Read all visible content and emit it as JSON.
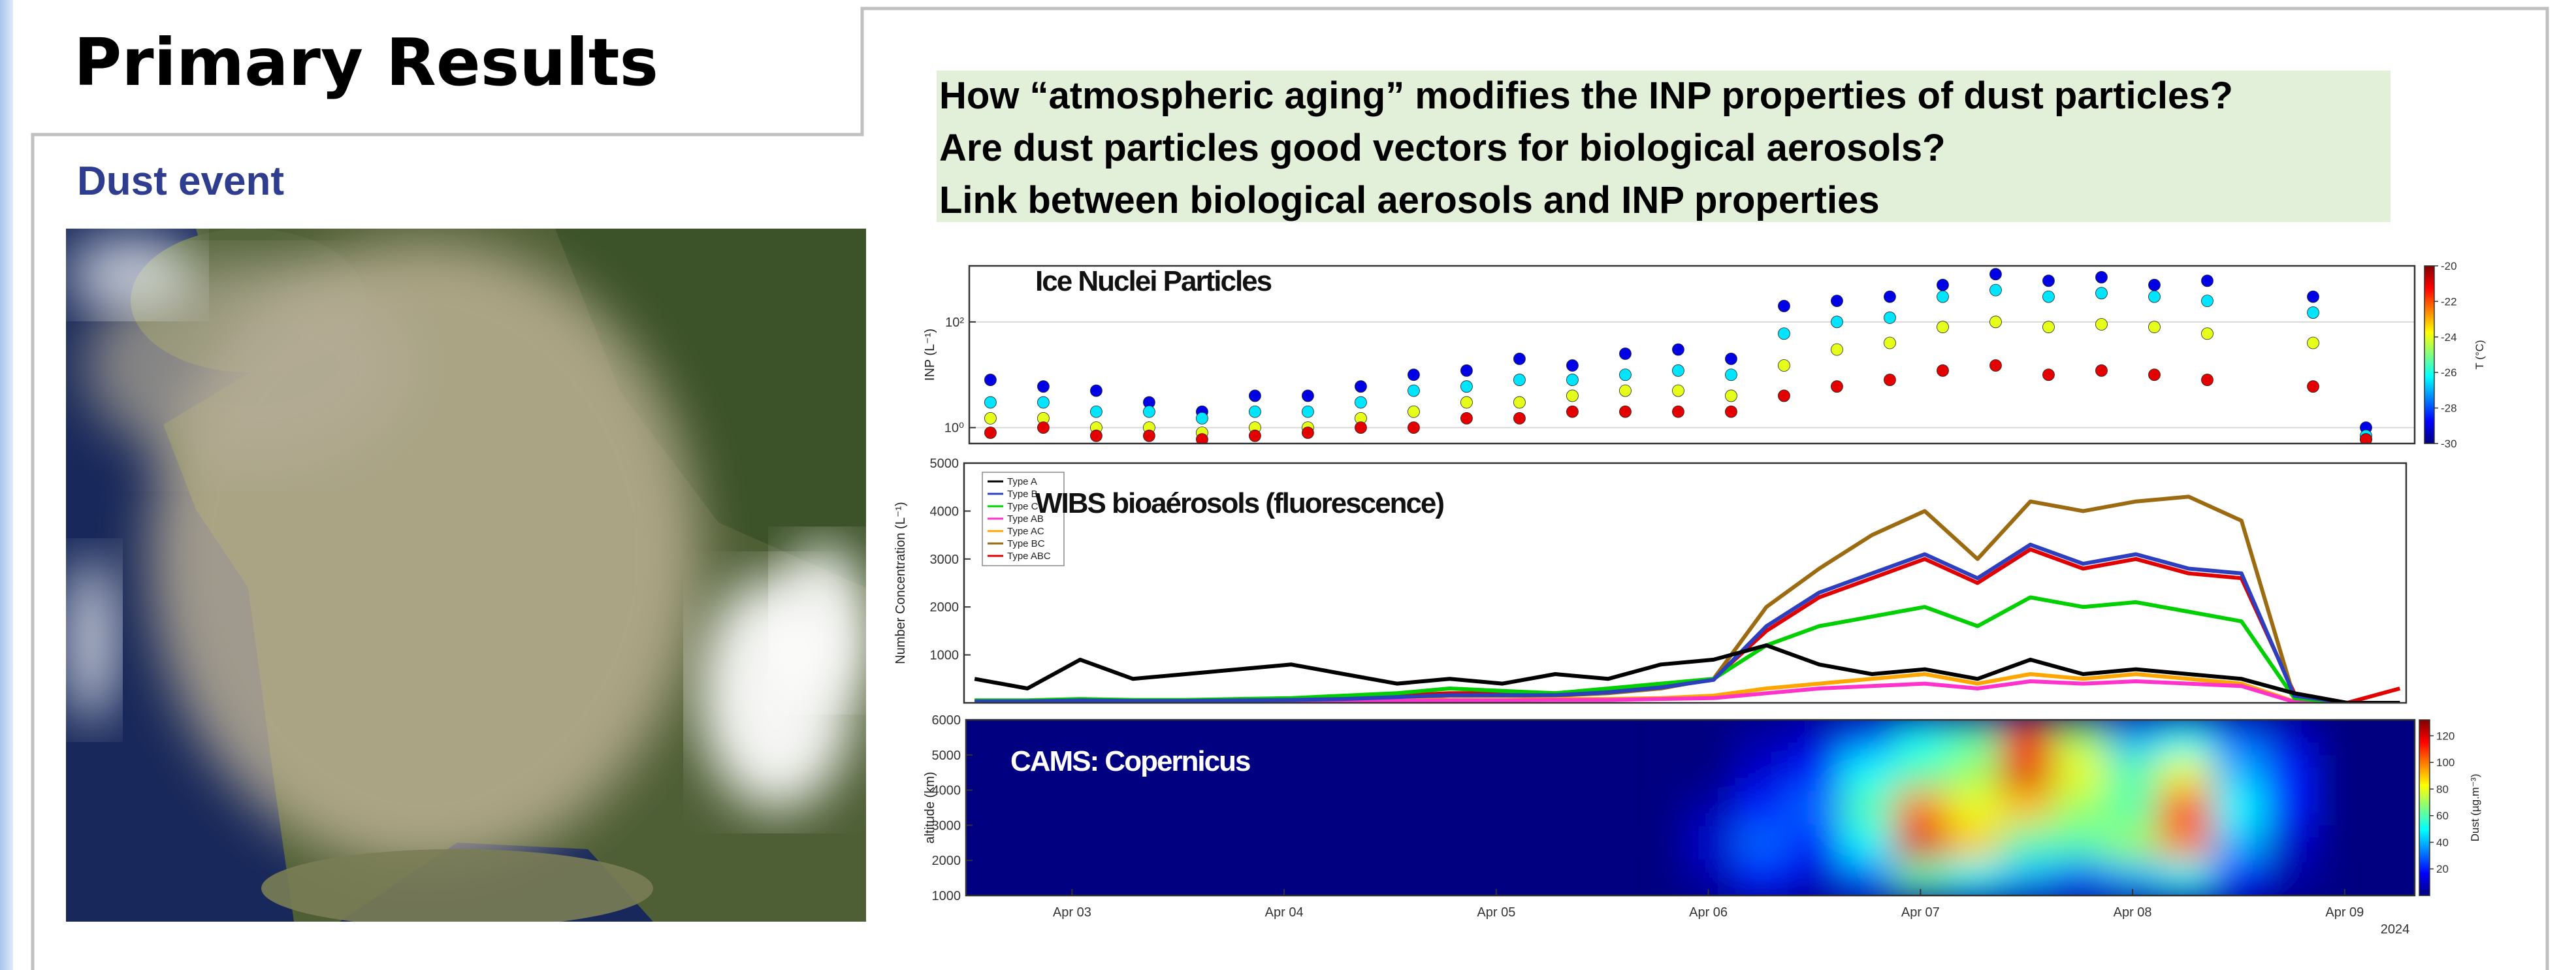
{
  "title": "Primary Results",
  "subtitle": "Dust event",
  "questions": [
    "How “atmospheric aging” modifies the INP properties of dust particles?",
    "Are dust particles good vectors for biological aerosols?",
    "Link between biological aerosols and INP properties"
  ],
  "chart_data": [
    {
      "type": "scatter",
      "label": "Ice Nuclei Particles",
      "ylabel": "INP (L⁻¹)",
      "yscale": "log",
      "ylim": [
        0.5,
        1150
      ],
      "yticks": [
        {
          "value": 1,
          "label": "10⁰"
        },
        {
          "value": 100,
          "label": "10²"
        }
      ],
      "grid": true,
      "xlim": [
        2.5,
        9.33
      ],
      "x": [
        2.6,
        2.85,
        3.1,
        3.35,
        3.6,
        3.85,
        4.1,
        4.35,
        4.6,
        4.85,
        5.1,
        5.35,
        5.6,
        5.85,
        6.1,
        6.35,
        6.6,
        6.85,
        7.1,
        7.35,
        7.6,
        7.85,
        8.1,
        8.35,
        8.6,
        8.85,
        9.1
      ],
      "series": [
        {
          "t": -29,
          "values": [
            8,
            6,
            5,
            3,
            2,
            4,
            4,
            6,
            10,
            12,
            20,
            15,
            25,
            30,
            20,
            200,
            250,
            300,
            500,
            800,
            600,
            700,
            500,
            600,
            null,
            300,
            1
          ]
        },
        {
          "t": -26.5,
          "values": [
            3,
            3,
            2,
            2,
            1.5,
            2,
            2,
            3,
            5,
            6,
            8,
            8,
            10,
            12,
            10,
            60,
            100,
            120,
            300,
            400,
            300,
            350,
            300,
            250,
            null,
            150,
            0.7
          ]
        },
        {
          "t": -24,
          "values": [
            1.5,
            1.5,
            1,
            1,
            0.8,
            1,
            1,
            1.5,
            2,
            3,
            3,
            4,
            5,
            5,
            4,
            15,
            30,
            40,
            80,
            100,
            80,
            90,
            80,
            60,
            null,
            40,
            0.6
          ]
        },
        {
          "t": -21,
          "values": [
            0.8,
            1,
            0.7,
            0.7,
            0.6,
            0.7,
            0.8,
            1,
            1,
            1.5,
            1.5,
            2,
            2,
            2,
            2,
            4,
            6,
            8,
            12,
            15,
            10,
            12,
            10,
            8,
            null,
            6,
            0.6
          ]
        }
      ],
      "colorbar": {
        "label": "T (°C)",
        "lim": [
          -30,
          -20
        ],
        "ticks": [
          -20,
          -22,
          -24,
          -26,
          -28,
          -30
        ]
      }
    },
    {
      "type": "line",
      "label": "WIBS bioaérosols (fluorescence)",
      "ylabel": "Number Concentration (L⁻¹)",
      "ylim": [
        0,
        5000
      ],
      "yticks": [
        1000,
        2000,
        3000,
        4000,
        5000
      ],
      "legend": "upper-left",
      "xlim": [
        2.5,
        9.33
      ],
      "x": [
        2.55,
        2.8,
        3.05,
        3.3,
        3.55,
        3.8,
        4.05,
        4.3,
        4.55,
        4.8,
        5.05,
        5.3,
        5.55,
        5.8,
        6.05,
        6.3,
        6.55,
        6.8,
        7.05,
        7.3,
        7.55,
        7.8,
        8.05,
        8.3,
        8.55,
        8.8,
        9.05,
        9.3
      ],
      "series": [
        {
          "name": "Type A",
          "color": "#000000",
          "values": [
            500,
            300,
            900,
            500,
            600,
            700,
            800,
            600,
            400,
            500,
            400,
            600,
            500,
            800,
            900,
            1200,
            800,
            600,
            700,
            500,
            900,
            600,
            700,
            600,
            500,
            200,
            0,
            0
          ]
        },
        {
          "name": "Type B",
          "color": "#2b3fbf",
          "values": [
            30,
            30,
            50,
            40,
            40,
            50,
            60,
            80,
            120,
            160,
            160,
            160,
            220,
            320,
            480,
            1600,
            2300,
            2700,
            3100,
            2600,
            3300,
            2900,
            3100,
            2800,
            2700,
            150,
            0,
            0
          ]
        },
        {
          "name": "Type C",
          "color": "#00d000",
          "values": [
            50,
            50,
            80,
            60,
            60,
            80,
            100,
            150,
            200,
            300,
            250,
            200,
            300,
            400,
            500,
            1200,
            1600,
            1800,
            2000,
            1600,
            2200,
            2000,
            2100,
            1900,
            1700,
            100,
            0,
            0
          ]
        },
        {
          "name": "Type AB",
          "color": "#ff33cc",
          "values": [
            10,
            10,
            20,
            20,
            20,
            20,
            30,
            30,
            40,
            50,
            50,
            60,
            60,
            80,
            100,
            200,
            300,
            350,
            400,
            300,
            450,
            400,
            450,
            400,
            350,
            20,
            0,
            0
          ]
        },
        {
          "name": "Type AC",
          "color": "#ffa500",
          "values": [
            20,
            20,
            30,
            30,
            30,
            40,
            40,
            50,
            60,
            60,
            60,
            80,
            80,
            100,
            150,
            300,
            400,
            500,
            600,
            400,
            600,
            500,
            600,
            500,
            400,
            30,
            0,
            0
          ]
        },
        {
          "name": "Type BC",
          "color": "#9c6a10",
          "values": [
            30,
            30,
            50,
            40,
            40,
            50,
            60,
            80,
            100,
            150,
            150,
            150,
            200,
            300,
            500,
            2000,
            2800,
            3500,
            4000,
            3000,
            4200,
            4000,
            4200,
            4300,
            3800,
            100,
            0,
            0
          ]
        },
        {
          "name": "Type ABC",
          "color": "#e00000",
          "values": [
            40,
            40,
            60,
            50,
            50,
            60,
            80,
            100,
            150,
            200,
            200,
            200,
            250,
            350,
            500,
            1500,
            2200,
            2600,
            3000,
            2500,
            3200,
            2800,
            3000,
            2700,
            2600,
            200,
            0,
            300
          ]
        }
      ]
    },
    {
      "type": "heatmap",
      "label": "CAMS: Copernicus",
      "ylabel": "altitude (km)",
      "ylim": [
        1000,
        6000
      ],
      "yticks": [
        1000,
        2000,
        3000,
        4000,
        5000,
        6000
      ],
      "xlim": [
        2.5,
        9.33
      ],
      "xticks": [
        {
          "value": 3,
          "label": "Apr 03"
        },
        {
          "value": 4,
          "label": "Apr 04"
        },
        {
          "value": 5,
          "label": "Apr 05"
        },
        {
          "value": 6,
          "label": "Apr 06"
        },
        {
          "value": 7,
          "label": "Apr 07"
        },
        {
          "value": 8,
          "label": "Apr 08"
        },
        {
          "value": 9,
          "label": "Apr 09"
        }
      ],
      "xnote": "2024",
      "x": [
        6.0,
        6.25,
        6.5,
        6.75,
        7.0,
        7.25,
        7.5,
        7.75,
        8.0,
        8.25,
        8.5,
        8.75
      ],
      "y": [
        5500,
        4500,
        3500,
        2500,
        1500
      ],
      "values": [
        [
          0,
          5,
          10,
          30,
          50,
          60,
          110,
          70,
          40,
          50,
          30,
          10
        ],
        [
          0,
          10,
          20,
          50,
          60,
          70,
          120,
          80,
          60,
          80,
          40,
          20
        ],
        [
          5,
          20,
          30,
          60,
          100,
          80,
          90,
          70,
          60,
          110,
          50,
          20
        ],
        [
          10,
          30,
          20,
          50,
          120,
          90,
          60,
          60,
          70,
          100,
          40,
          10
        ],
        [
          5,
          20,
          10,
          30,
          60,
          50,
          40,
          30,
          40,
          50,
          20,
          5
        ]
      ],
      "colorbar": {
        "label": "Dust (µg.m⁻³)",
        "lim": [
          0,
          132
        ],
        "ticks": [
          20,
          40,
          60,
          80,
          100,
          120
        ]
      }
    }
  ]
}
